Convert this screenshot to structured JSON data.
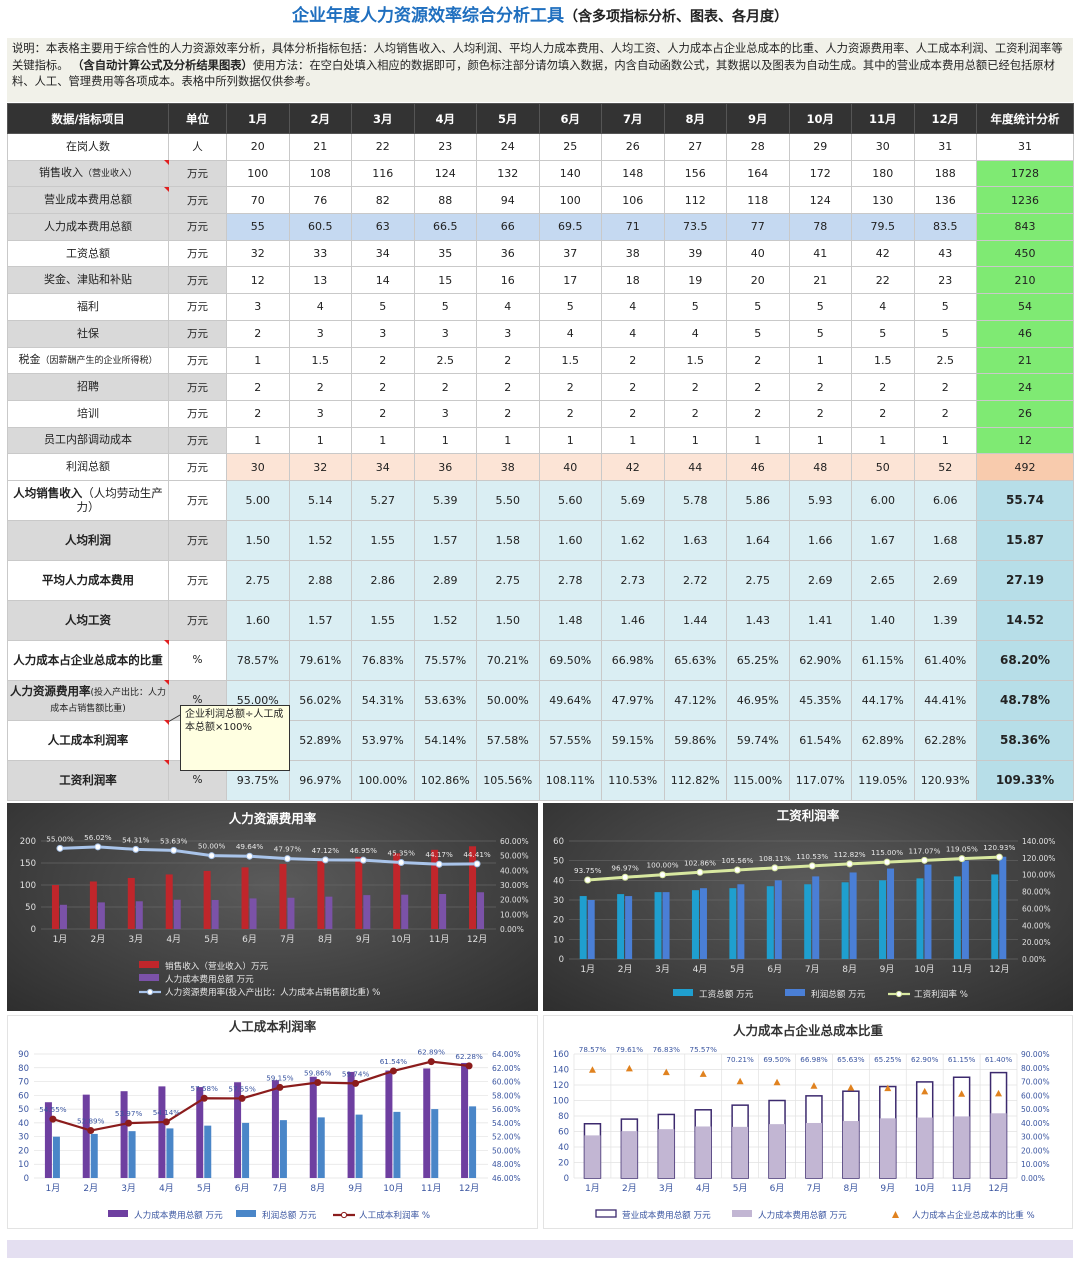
{
  "title": {
    "main": "企业年度人力资源效率综合分析工具",
    "sub": "（含多项指标分析、图表、各月度）"
  },
  "description": {
    "p1": "说明：本表格主要用于综合性的人力资源效率分析，具体分析指标包括：人均销售收入、人均利润、平均人力成本费用、人均工资、人力成本占企业总成本的比重、人力资源费用率、人工成本利润、工资利润率等关键指标。",
    "p2": "（含自动计算公式及分析结果图表）",
    "p3": "使用方法：在空白处填入相应的数据即可，颜色标注部分请勿填入数据，内含自动函数公式，其数据以及图表为自动生成。其中的营业成本费用总额已经包括原材料、人工、管理费用等各项成本。表格中所列数据仅供参考。"
  },
  "table": {
    "headers": [
      "数据/指标项目",
      "单位",
      "1月",
      "2月",
      "3月",
      "4月",
      "5月",
      "6月",
      "7月",
      "8月",
      "9月",
      "10月",
      "11月",
      "12月",
      "年度统计分析"
    ],
    "rows": [
      {
        "label": "在岗人数",
        "unit": "人",
        "values": [
          "20",
          "21",
          "22",
          "23",
          "24",
          "25",
          "26",
          "27",
          "28",
          "29",
          "30",
          "31"
        ],
        "total": "31"
      },
      {
        "label": "销售收入",
        "label_small": "（营业收入）",
        "unit": "万元",
        "values": [
          "100",
          "108",
          "116",
          "124",
          "132",
          "140",
          "148",
          "156",
          "164",
          "172",
          "180",
          "188"
        ],
        "total": "1728"
      },
      {
        "label": "营业成本费用总额",
        "unit": "万元",
        "values": [
          "70",
          "76",
          "82",
          "88",
          "94",
          "100",
          "106",
          "112",
          "118",
          "124",
          "130",
          "136"
        ],
        "total": "1236"
      },
      {
        "label": "人力成本费用总额",
        "unit": "万元",
        "values": [
          "55",
          "60.5",
          "63",
          "66.5",
          "66",
          "69.5",
          "71",
          "73.5",
          "77",
          "78",
          "79.5",
          "83.5"
        ],
        "total": "843"
      },
      {
        "label": "工资总额",
        "unit": "万元",
        "values": [
          "32",
          "33",
          "34",
          "35",
          "36",
          "37",
          "38",
          "39",
          "40",
          "41",
          "42",
          "43"
        ],
        "total": "450"
      },
      {
        "label": "奖金、津贴和补贴",
        "unit": "万元",
        "values": [
          "12",
          "13",
          "14",
          "15",
          "16",
          "17",
          "18",
          "19",
          "20",
          "21",
          "22",
          "23"
        ],
        "total": "210"
      },
      {
        "label": "福利",
        "unit": "万元",
        "values": [
          "3",
          "4",
          "5",
          "5",
          "4",
          "5",
          "4",
          "5",
          "5",
          "5",
          "4",
          "5"
        ],
        "total": "54"
      },
      {
        "label": "社保",
        "unit": "万元",
        "values": [
          "2",
          "3",
          "3",
          "3",
          "3",
          "4",
          "4",
          "4",
          "5",
          "5",
          "5",
          "5"
        ],
        "total": "46"
      },
      {
        "label": "税金",
        "label_small": "（因薪酬产生的企业所得税）",
        "unit": "万元",
        "values": [
          "1",
          "1.5",
          "2",
          "2.5",
          "2",
          "1.5",
          "2",
          "1.5",
          "2",
          "1",
          "1.5",
          "2.5"
        ],
        "total": "21"
      },
      {
        "label": "招聘",
        "unit": "万元",
        "values": [
          "2",
          "2",
          "2",
          "2",
          "2",
          "2",
          "2",
          "2",
          "2",
          "2",
          "2",
          "2"
        ],
        "total": "24"
      },
      {
        "label": "培训",
        "unit": "万元",
        "values": [
          "2",
          "3",
          "2",
          "3",
          "2",
          "2",
          "2",
          "2",
          "2",
          "2",
          "2",
          "2"
        ],
        "total": "26"
      },
      {
        "label": "员工内部调动成本",
        "unit": "万元",
        "values": [
          "1",
          "1",
          "1",
          "1",
          "1",
          "1",
          "1",
          "1",
          "1",
          "1",
          "1",
          "1"
        ],
        "total": "12"
      },
      {
        "label": "利润总额",
        "unit": "万元",
        "values": [
          "30",
          "32",
          "34",
          "36",
          "38",
          "40",
          "42",
          "44",
          "46",
          "48",
          "50",
          "52"
        ],
        "total": "492"
      }
    ],
    "indicators": [
      {
        "label": "人均销售收入",
        "label_suffix": "（人均劳动生产力）",
        "unit": "万元",
        "values": [
          "5.00",
          "5.14",
          "5.27",
          "5.39",
          "5.50",
          "5.60",
          "5.69",
          "5.78",
          "5.86",
          "5.93",
          "6.00",
          "6.06"
        ],
        "total": "55.74"
      },
      {
        "label": "人均利润",
        "unit": "万元",
        "values": [
          "1.50",
          "1.52",
          "1.55",
          "1.57",
          "1.58",
          "1.60",
          "1.62",
          "1.63",
          "1.64",
          "1.66",
          "1.67",
          "1.68"
        ],
        "total": "15.87"
      },
      {
        "label": "平均人力成本费用",
        "unit": "万元",
        "values": [
          "2.75",
          "2.88",
          "2.86",
          "2.89",
          "2.75",
          "2.78",
          "2.73",
          "2.72",
          "2.75",
          "2.69",
          "2.65",
          "2.69"
        ],
        "total": "27.19"
      },
      {
        "label": "人均工资",
        "unit": "万元",
        "values": [
          "1.60",
          "1.57",
          "1.55",
          "1.52",
          "1.50",
          "1.48",
          "1.46",
          "1.44",
          "1.43",
          "1.41",
          "1.40",
          "1.39"
        ],
        "total": "14.52"
      },
      {
        "label": "人力成本占企业总成本的比重",
        "unit": "%",
        "values": [
          "78.57%",
          "79.61%",
          "76.83%",
          "75.57%",
          "70.21%",
          "69.50%",
          "66.98%",
          "65.63%",
          "65.25%",
          "62.90%",
          "61.15%",
          "61.40%"
        ],
        "total": "68.20%"
      },
      {
        "label": "人力资源费用率",
        "label_suffix": "(投入产出比：人力成本占销售额比重)",
        "unit": "%",
        "values": [
          "55.00%",
          "56.02%",
          "54.31%",
          "53.63%",
          "50.00%",
          "49.64%",
          "47.97%",
          "47.12%",
          "46.95%",
          "45.35%",
          "44.17%",
          "44.41%"
        ],
        "total": "48.78%"
      },
      {
        "label": "人工成本利润率",
        "unit": "%",
        "values": [
          "54.55%",
          "52.89%",
          "53.97%",
          "54.14%",
          "57.58%",
          "57.55%",
          "59.15%",
          "59.86%",
          "59.74%",
          "61.54%",
          "62.89%",
          "62.28%"
        ],
        "total": "58.36%"
      },
      {
        "label": "工资利润率",
        "unit": "%",
        "values": [
          "93.75%",
          "96.97%",
          "100.00%",
          "102.86%",
          "105.56%",
          "108.11%",
          "110.53%",
          "112.82%",
          "115.00%",
          "117.07%",
          "119.05%",
          "120.93%"
        ],
        "total": "109.33%"
      }
    ]
  },
  "tooltip": {
    "line1": "企业利润总额÷人工成",
    "line2": "本总额×100%"
  },
  "colors": {
    "title_blue": "#1f6fbf",
    "header_dark": "#333333",
    "highlight_green": "#7fea73",
    "indicator_blue": "#daeef3",
    "peach": "#fce4d6",
    "cost_blue": "#c5d9f1"
  },
  "chart_data": [
    {
      "type": "bar",
      "title": "人力资源费用率",
      "categories": [
        "1月",
        "2月",
        "3月",
        "4月",
        "5月",
        "6月",
        "7月",
        "8月",
        "9月",
        "10月",
        "11月",
        "12月"
      ],
      "series": [
        {
          "name": "销售收入（营业收入）万元",
          "kind": "bar",
          "axis": "left",
          "color": "#c0262b",
          "values": [
            100,
            108,
            116,
            124,
            132,
            140,
            148,
            156,
            164,
            172,
            180,
            188
          ]
        },
        {
          "name": "人力成本费用总额 万元",
          "kind": "bar",
          "axis": "left",
          "color": "#7b52a8",
          "values": [
            55,
            60.5,
            63,
            66.5,
            66,
            69.5,
            71,
            73.5,
            77,
            78,
            79.5,
            83.5
          ]
        },
        {
          "name": "人力资源费用率(投入产出比：人力成本占销售额比重) %",
          "kind": "line",
          "axis": "right",
          "color": "#a9c4ea",
          "values": [
            55.0,
            56.02,
            54.31,
            53.63,
            50.0,
            49.64,
            47.97,
            47.12,
            46.95,
            45.35,
            44.17,
            44.41
          ]
        }
      ],
      "y_ticks": [
        "0",
        "50",
        "100",
        "150",
        "200"
      ],
      "y2_ticks": [
        "0.00%",
        "10.00%",
        "20.00%",
        "30.00%",
        "40.00%",
        "50.00%",
        "60.00%"
      ],
      "ylim": [
        0,
        200
      ],
      "y2lim": [
        0,
        60
      ],
      "data_labels": [
        "55.00%",
        "56.02%",
        "54.31%",
        "53.63%",
        "50.00%",
        "49.64%",
        "47.97%",
        "47.12%",
        "46.95%",
        "45.35%",
        "44.17%",
        "44.41%"
      ],
      "theme": "dark"
    },
    {
      "type": "bar",
      "title": "工资利润率",
      "categories": [
        "1月",
        "2月",
        "3月",
        "4月",
        "5月",
        "6月",
        "7月",
        "8月",
        "9月",
        "10月",
        "11月",
        "12月"
      ],
      "series": [
        {
          "name": "工资总额 万元",
          "kind": "bar",
          "axis": "left",
          "color": "#1f9fcf",
          "values": [
            32,
            33,
            34,
            35,
            36,
            37,
            38,
            39,
            40,
            41,
            42,
            43
          ]
        },
        {
          "name": "利润总额 万元",
          "kind": "bar",
          "axis": "left",
          "color": "#4a7fd6",
          "values": [
            30,
            32,
            34,
            36,
            38,
            40,
            42,
            44,
            46,
            48,
            50,
            52
          ]
        },
        {
          "name": "工资利润率 %",
          "kind": "line",
          "axis": "right",
          "color": "#d8e8a0",
          "values": [
            93.75,
            96.97,
            100.0,
            102.86,
            105.56,
            108.11,
            110.53,
            112.82,
            115.0,
            117.07,
            119.05,
            120.93
          ]
        }
      ],
      "y_ticks": [
        "0",
        "10",
        "20",
        "30",
        "40",
        "50",
        "60"
      ],
      "y2_ticks": [
        "0.00%",
        "20.00%",
        "40.00%",
        "60.00%",
        "80.00%",
        "100.00%",
        "120.00%",
        "140.00%"
      ],
      "ylim": [
        0,
        60
      ],
      "y2lim": [
        0,
        140
      ],
      "data_labels": [
        "93.75%",
        "96.97%",
        "100.00%",
        "102.86%",
        "105.56%",
        "108.11%",
        "110.53%",
        "112.82%",
        "115.00%",
        "117.07%",
        "119.05%",
        "120.93%"
      ],
      "theme": "dark"
    },
    {
      "type": "bar",
      "title": "人工成本利润率",
      "categories": [
        "1月",
        "2月",
        "3月",
        "4月",
        "5月",
        "6月",
        "7月",
        "8月",
        "9月",
        "10月",
        "11月",
        "12月"
      ],
      "series": [
        {
          "name": "人力成本费用总额 万元",
          "kind": "bar",
          "axis": "left",
          "color": "#6e3fa0",
          "values": [
            55,
            60.5,
            63,
            66.5,
            66,
            69.5,
            71,
            73.5,
            77,
            78,
            79.5,
            83.5
          ]
        },
        {
          "name": "利润总额 万元",
          "kind": "bar",
          "axis": "left",
          "color": "#4a86c8",
          "values": [
            30,
            32,
            34,
            36,
            38,
            40,
            42,
            44,
            46,
            48,
            50,
            52
          ]
        },
        {
          "name": "人工成本利润率 %",
          "kind": "line",
          "axis": "right",
          "color": "#8b1c1c",
          "values": [
            54.55,
            52.89,
            53.97,
            54.14,
            57.58,
            57.55,
            59.15,
            59.86,
            59.74,
            61.54,
            62.89,
            62.28
          ]
        }
      ],
      "y_ticks": [
        "0",
        "10",
        "20",
        "30",
        "40",
        "50",
        "60",
        "70",
        "80",
        "90"
      ],
      "y2_ticks": [
        "46.00%",
        "48.00%",
        "50.00%",
        "52.00%",
        "54.00%",
        "56.00%",
        "58.00%",
        "60.00%",
        "62.00%",
        "64.00%"
      ],
      "ylim": [
        0,
        90
      ],
      "y2lim": [
        46,
        64
      ],
      "data_labels": [
        "54.55%",
        "52.89%",
        "53.97%",
        "54.14%",
        "57.58%",
        "57.55%",
        "59.15%",
        "59.86%",
        "59.74%",
        "61.54%",
        "62.89%",
        "62.28%"
      ],
      "theme": "light"
    },
    {
      "type": "bar",
      "title": "人力成本占企业总成本比重",
      "categories": [
        "1月",
        "2月",
        "3月",
        "4月",
        "5月",
        "6月",
        "7月",
        "8月",
        "9月",
        "10月",
        "11月",
        "12月"
      ],
      "series": [
        {
          "name": "营业成本费用总额 万元",
          "kind": "bar_outline",
          "axis": "left",
          "color": "#3c2a6e",
          "values": [
            70,
            76,
            82,
            88,
            94,
            100,
            106,
            112,
            118,
            124,
            130,
            136
          ]
        },
        {
          "name": "人力成本费用总额 万元",
          "kind": "bar_overlay",
          "axis": "left",
          "color": "#c2b6d3",
          "values": [
            55,
            60.5,
            63,
            66.5,
            66,
            69.5,
            71,
            73.5,
            77,
            78,
            79.5,
            83.5
          ]
        },
        {
          "name": "人力成本占企业总成本的比重 %",
          "kind": "marker",
          "axis": "right",
          "color": "#e0821f",
          "values": [
            78.57,
            79.61,
            76.83,
            75.57,
            70.21,
            69.5,
            66.98,
            65.63,
            65.25,
            62.9,
            61.15,
            61.4
          ]
        }
      ],
      "y_ticks": [
        "0",
        "20",
        "40",
        "60",
        "80",
        "100",
        "120",
        "140",
        "160"
      ],
      "y2_ticks": [
        "0.00%",
        "10.00%",
        "20.00%",
        "30.00%",
        "40.00%",
        "50.00%",
        "60.00%",
        "70.00%",
        "80.00%",
        "90.00%"
      ],
      "ylim": [
        0,
        160
      ],
      "y2lim": [
        0,
        90
      ],
      "data_labels": [
        "78.57%",
        "79.61%",
        "76.83%",
        "75.57%",
        "70.21%",
        "69.50%",
        "66.98%",
        "65.63%",
        "65.25%",
        "62.90%",
        "61.15%",
        "61.40%"
      ],
      "theme": "light"
    }
  ]
}
